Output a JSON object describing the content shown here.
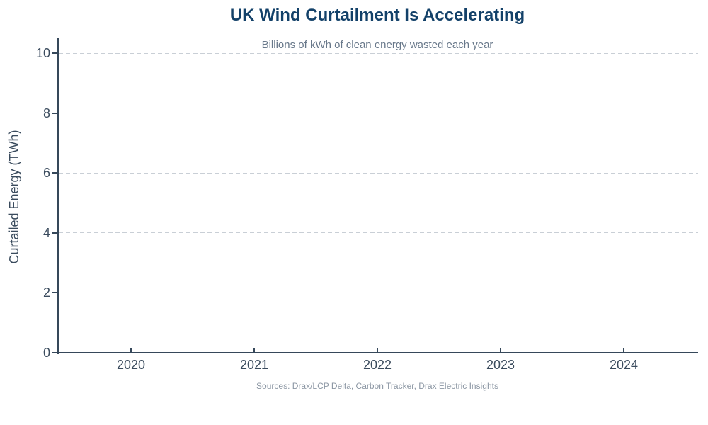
{
  "chart_data": {
    "type": "bar",
    "title": "UK Wind Curtailment Is Accelerating",
    "subtitle": "Billions of kWh of clean energy wasted each year",
    "ylabel": "Curtailed Energy (TWh)",
    "categories": [
      "2020",
      "2021",
      "2022",
      "2023",
      "2024"
    ],
    "series": [],
    "note": "axes rendered with no visible data marks; plot area is empty",
    "y_tick_labels": [
      "0",
      "2",
      "4",
      "6",
      "8",
      "10"
    ],
    "y_tick_values": [
      0,
      2,
      4,
      6,
      8,
      10
    ],
    "ylim": [
      0,
      10.5
    ],
    "grid": "horizontal dashed gridlines",
    "legend": "none"
  },
  "footer": {
    "source_text": "Sources: Drax/LCP Delta, Carbon Tracker, Drax Electric Insights"
  },
  "colors": {
    "background": "#ffffff",
    "title": "#134169",
    "subtitle": "#68788a",
    "axis": "#36485a",
    "tick_label": "#3a4b5d",
    "grid": "#c9cfd6",
    "footer": "#8b96a3"
  }
}
